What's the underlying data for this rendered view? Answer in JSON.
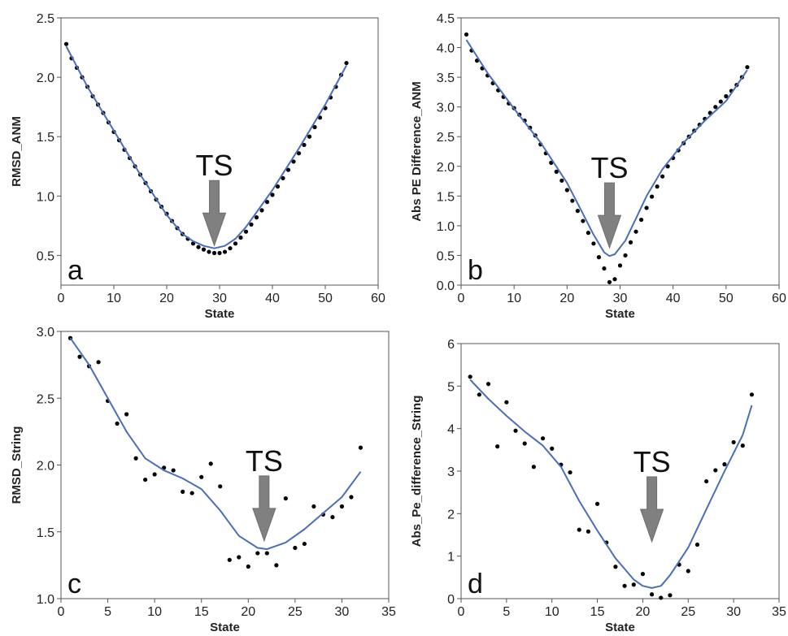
{
  "colors": {
    "fit_line": "#4a6fb8",
    "points": "#000000",
    "arrow": "#808080",
    "frame": "#555555"
  },
  "chart_data": [
    {
      "type": "scatter",
      "panel_letter": "a",
      "xlabel": "State",
      "ylabel": "RMSD_ANM",
      "xlim": [
        0,
        60
      ],
      "ylim": [
        0.25,
        2.5
      ],
      "xticks": [
        0,
        10,
        20,
        30,
        40,
        50,
        60
      ],
      "yticks": [
        0.5,
        1.0,
        1.5,
        2.0,
        2.5
      ],
      "ytick_labels": [
        "0.5",
        "1.0",
        "1.5",
        "2.0",
        "2.5"
      ],
      "annotation": {
        "text": "TS",
        "x": 29,
        "y": 0.57
      },
      "points": [
        [
          1,
          2.28
        ],
        [
          2,
          2.16
        ],
        [
          3,
          2.08
        ],
        [
          4,
          2.0
        ],
        [
          5,
          1.92
        ],
        [
          6,
          1.84
        ],
        [
          7,
          1.77
        ],
        [
          8,
          1.7
        ],
        [
          9,
          1.62
        ],
        [
          10,
          1.54
        ],
        [
          11,
          1.47
        ],
        [
          12,
          1.39
        ],
        [
          13,
          1.32
        ],
        [
          14,
          1.25
        ],
        [
          15,
          1.18
        ],
        [
          16,
          1.11
        ],
        [
          17,
          1.04
        ],
        [
          18,
          0.97
        ],
        [
          19,
          0.91
        ],
        [
          20,
          0.85
        ],
        [
          21,
          0.79
        ],
        [
          22,
          0.73
        ],
        [
          23,
          0.68
        ],
        [
          24,
          0.64
        ],
        [
          25,
          0.6
        ],
        [
          26,
          0.57
        ],
        [
          27,
          0.55
        ],
        [
          28,
          0.53
        ],
        [
          29,
          0.52
        ],
        [
          30,
          0.52
        ],
        [
          31,
          0.53
        ],
        [
          32,
          0.56
        ],
        [
          33,
          0.6
        ],
        [
          34,
          0.65
        ],
        [
          35,
          0.7
        ],
        [
          36,
          0.76
        ],
        [
          37,
          0.82
        ],
        [
          38,
          0.88
        ],
        [
          39,
          0.95
        ],
        [
          40,
          1.01
        ],
        [
          41,
          1.08
        ],
        [
          42,
          1.15
        ],
        [
          43,
          1.22
        ],
        [
          44,
          1.29
        ],
        [
          45,
          1.36
        ],
        [
          46,
          1.43
        ],
        [
          47,
          1.5
        ],
        [
          48,
          1.58
        ],
        [
          49,
          1.66
        ],
        [
          50,
          1.74
        ],
        [
          51,
          1.83
        ],
        [
          52,
          1.92
        ],
        [
          53,
          2.02
        ],
        [
          54,
          2.12
        ]
      ],
      "fit": [
        [
          1,
          2.26
        ],
        [
          5,
          1.92
        ],
        [
          10,
          1.55
        ],
        [
          15,
          1.18
        ],
        [
          20,
          0.84
        ],
        [
          23,
          0.68
        ],
        [
          25,
          0.62
        ],
        [
          27,
          0.58
        ],
        [
          29,
          0.56
        ],
        [
          31,
          0.58
        ],
        [
          33,
          0.64
        ],
        [
          35,
          0.74
        ],
        [
          40,
          1.05
        ],
        [
          45,
          1.4
        ],
        [
          50,
          1.77
        ],
        [
          54,
          2.1
        ]
      ]
    },
    {
      "type": "scatter",
      "panel_letter": "b",
      "xlabel": "State",
      "ylabel": "Abs PE Difference_ANM",
      "xlim": [
        0,
        60
      ],
      "ylim": [
        0,
        4.5
      ],
      "xticks": [
        0,
        10,
        20,
        30,
        40,
        50,
        60
      ],
      "yticks": [
        0,
        0.5,
        1.0,
        1.5,
        2.0,
        2.5,
        3.0,
        3.5,
        4.0,
        4.5
      ],
      "ytick_labels": [
        "0.0",
        "0.5",
        "1.0",
        "1.5",
        "2.0",
        "2.5",
        "3.0",
        "3.5",
        "4.0",
        "4.5"
      ],
      "annotation": {
        "text": "TS",
        "x": 28,
        "y": 0.6
      },
      "points": [
        [
          1,
          4.22
        ],
        [
          2,
          3.95
        ],
        [
          3,
          3.78
        ],
        [
          4,
          3.65
        ],
        [
          5,
          3.53
        ],
        [
          6,
          3.4
        ],
        [
          7,
          3.28
        ],
        [
          8,
          3.17
        ],
        [
          9,
          3.06
        ],
        [
          10,
          2.98
        ],
        [
          11,
          2.87
        ],
        [
          12,
          2.77
        ],
        [
          13,
          2.65
        ],
        [
          14,
          2.52
        ],
        [
          15,
          2.37
        ],
        [
          16,
          2.22
        ],
        [
          17,
          2.06
        ],
        [
          18,
          1.91
        ],
        [
          19,
          1.76
        ],
        [
          20,
          1.6
        ],
        [
          21,
          1.42
        ],
        [
          22,
          1.25
        ],
        [
          23,
          1.08
        ],
        [
          24,
          0.88
        ],
        [
          25,
          0.7
        ],
        [
          26,
          0.47
        ],
        [
          27,
          0.28
        ],
        [
          28,
          0.05
        ],
        [
          29,
          0.1
        ],
        [
          30,
          0.33
        ],
        [
          31,
          0.5
        ],
        [
          32,
          0.72
        ],
        [
          33,
          0.9
        ],
        [
          34,
          1.1
        ],
        [
          35,
          1.3
        ],
        [
          36,
          1.49
        ],
        [
          37,
          1.66
        ],
        [
          38,
          1.83
        ],
        [
          39,
          2.0
        ],
        [
          40,
          2.14
        ],
        [
          41,
          2.27
        ],
        [
          42,
          2.39
        ],
        [
          43,
          2.5
        ],
        [
          44,
          2.6
        ],
        [
          45,
          2.7
        ],
        [
          46,
          2.8
        ],
        [
          47,
          2.9
        ],
        [
          48,
          3.0
        ],
        [
          49,
          3.09
        ],
        [
          50,
          3.18
        ],
        [
          51,
          3.27
        ],
        [
          52,
          3.37
        ],
        [
          53,
          3.5
        ],
        [
          54,
          3.67
        ]
      ],
      "fit": [
        [
          1,
          4.13
        ],
        [
          5,
          3.57
        ],
        [
          10,
          2.97
        ],
        [
          15,
          2.4
        ],
        [
          20,
          1.72
        ],
        [
          23,
          1.2
        ],
        [
          25,
          0.85
        ],
        [
          27,
          0.55
        ],
        [
          28,
          0.49
        ],
        [
          29,
          0.52
        ],
        [
          31,
          0.75
        ],
        [
          33,
          1.12
        ],
        [
          35,
          1.5
        ],
        [
          38,
          1.95
        ],
        [
          42,
          2.4
        ],
        [
          46,
          2.77
        ],
        [
          50,
          3.1
        ],
        [
          54,
          3.62
        ]
      ]
    },
    {
      "type": "scatter",
      "panel_letter": "c",
      "xlabel": "State",
      "ylabel": "RMSD_String",
      "xlim": [
        0,
        35
      ],
      "ylim": [
        1.0,
        3.0
      ],
      "xticks": [
        0,
        5,
        10,
        15,
        20,
        25,
        30,
        35
      ],
      "yticks": [
        1.0,
        1.5,
        2.0,
        2.5,
        3.0
      ],
      "ytick_labels": [
        "1.0",
        "1.5",
        "2.0",
        "2.5",
        "3.0"
      ],
      "annotation": {
        "text": "TS",
        "x": 21.7,
        "y": 1.42
      },
      "points": [
        [
          1,
          2.95
        ],
        [
          2,
          2.81
        ],
        [
          3,
          2.74
        ],
        [
          4,
          2.77
        ],
        [
          5,
          2.48
        ],
        [
          6,
          2.31
        ],
        [
          7,
          2.38
        ],
        [
          8,
          2.05
        ],
        [
          9,
          1.89
        ],
        [
          10,
          1.93
        ],
        [
          11,
          1.98
        ],
        [
          12,
          1.96
        ],
        [
          13,
          1.8
        ],
        [
          14,
          1.79
        ],
        [
          15,
          1.91
        ],
        [
          16,
          2.01
        ],
        [
          17,
          1.84
        ],
        [
          18,
          1.29
        ],
        [
          19,
          1.31
        ],
        [
          20,
          1.24
        ],
        [
          21,
          1.34
        ],
        [
          22,
          1.34
        ],
        [
          23,
          1.25
        ],
        [
          24,
          1.75
        ],
        [
          25,
          1.38
        ],
        [
          26,
          1.41
        ],
        [
          27,
          1.69
        ],
        [
          28,
          1.63
        ],
        [
          29,
          1.61
        ],
        [
          30,
          1.69
        ],
        [
          31,
          1.76
        ],
        [
          32,
          2.13
        ]
      ],
      "fit": [
        [
          1,
          2.95
        ],
        [
          3,
          2.75
        ],
        [
          5,
          2.5
        ],
        [
          7,
          2.25
        ],
        [
          9,
          2.05
        ],
        [
          11,
          1.96
        ],
        [
          13,
          1.9
        ],
        [
          15,
          1.82
        ],
        [
          17,
          1.66
        ],
        [
          19,
          1.47
        ],
        [
          21,
          1.38
        ],
        [
          22,
          1.37
        ],
        [
          24,
          1.42
        ],
        [
          26,
          1.52
        ],
        [
          28,
          1.64
        ],
        [
          30,
          1.76
        ],
        [
          32,
          1.95
        ]
      ]
    },
    {
      "type": "scatter",
      "panel_letter": "d",
      "xlabel": "State",
      "ylabel": "Abs_Pe_difference_String",
      "xlim": [
        0,
        35
      ],
      "ylim": [
        0,
        6
      ],
      "xticks": [
        0,
        5,
        10,
        15,
        20,
        25,
        30,
        35
      ],
      "yticks": [
        0,
        1,
        2,
        3,
        4,
        5,
        6
      ],
      "ytick_labels": [
        "0",
        "1",
        "2",
        "3",
        "4",
        "5",
        "6"
      ],
      "annotation": {
        "text": "TS",
        "x": 21,
        "y": 1.3
      },
      "points": [
        [
          1,
          5.22
        ],
        [
          2,
          4.8
        ],
        [
          3,
          5.05
        ],
        [
          4,
          3.58
        ],
        [
          5,
          4.62
        ],
        [
          6,
          3.95
        ],
        [
          7,
          3.65
        ],
        [
          8,
          3.1
        ],
        [
          9,
          3.77
        ],
        [
          10,
          3.53
        ],
        [
          11,
          3.15
        ],
        [
          12,
          2.97
        ],
        [
          13,
          1.62
        ],
        [
          14,
          1.58
        ],
        [
          15,
          2.23
        ],
        [
          16,
          1.32
        ],
        [
          17,
          0.75
        ],
        [
          18,
          0.3
        ],
        [
          19,
          0.33
        ],
        [
          20,
          0.58
        ],
        [
          21,
          0.1
        ],
        [
          22,
          0.02
        ],
        [
          23,
          0.08
        ],
        [
          24,
          0.8
        ],
        [
          25,
          0.65
        ],
        [
          26,
          1.27
        ],
        [
          27,
          2.76
        ],
        [
          28,
          3.02
        ],
        [
          29,
          3.16
        ],
        [
          30,
          3.68
        ],
        [
          31,
          3.6
        ],
        [
          32,
          4.8
        ]
      ],
      "fit": [
        [
          1,
          5.15
        ],
        [
          3,
          4.7
        ],
        [
          5,
          4.3
        ],
        [
          7,
          3.93
        ],
        [
          9,
          3.6
        ],
        [
          11,
          3.1
        ],
        [
          13,
          2.3
        ],
        [
          15,
          1.6
        ],
        [
          17,
          0.95
        ],
        [
          19,
          0.45
        ],
        [
          20,
          0.3
        ],
        [
          21,
          0.25
        ],
        [
          22,
          0.3
        ],
        [
          23,
          0.55
        ],
        [
          25,
          1.2
        ],
        [
          27,
          2.1
        ],
        [
          29,
          3.0
        ],
        [
          31,
          3.85
        ],
        [
          32,
          4.55
        ]
      ]
    }
  ]
}
